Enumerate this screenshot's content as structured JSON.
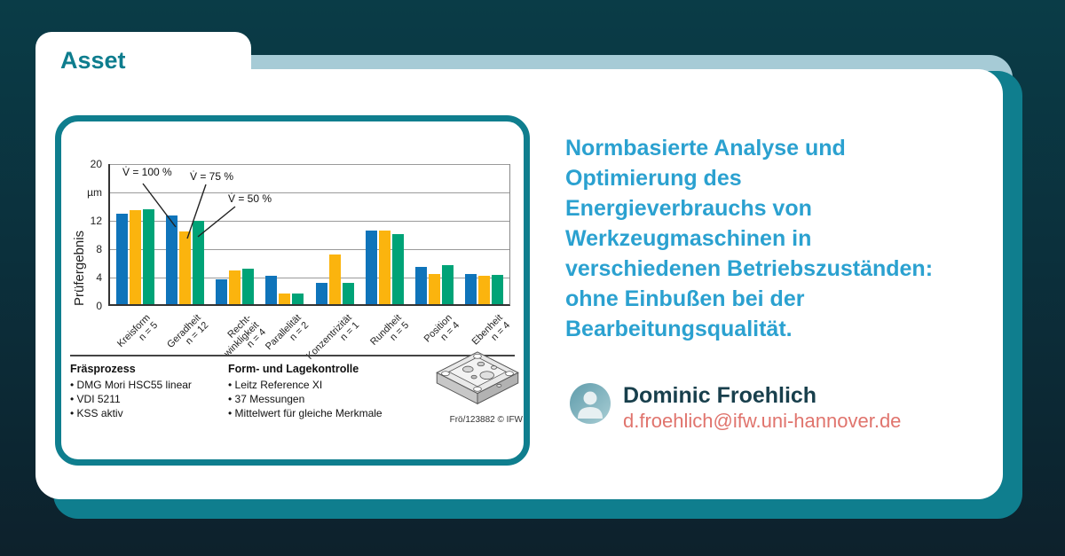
{
  "page": {
    "tab_label": "Asset",
    "colors": {
      "background_top": "#0a3c47",
      "background_bottom": "#0d212c",
      "accent_teal": "#0f7e8e",
      "band_blue": "#a6cbd6",
      "title_blue": "#2ba1d0",
      "name_dark": "#183f4c",
      "email_coral": "#e0746d"
    }
  },
  "asset": {
    "title_lines": [
      "Normbasierte Analyse und",
      "Optimierung des",
      "Energieverbrauchs von",
      "Werkzeugmaschinen in",
      "verschiedenen Betriebszuständen:",
      "ohne Einbußen bei der",
      "Bearbeitungsqualität."
    ],
    "title": "Normbasierte Analyse und Optimierung des Energieverbrauchs von Werkzeugmaschinen in verschiedenen Betriebszuständen: ohne Einbußen bei der Bearbeitungsqualität.",
    "author": {
      "name": "Dominic Froehlich",
      "email": "d.froehlich@ifw.uni-hannover.de"
    }
  },
  "chart_data": {
    "type": "bar",
    "ylabel": "Prüfergebnis",
    "y_unit": "µm",
    "ylim": [
      0,
      20
    ],
    "grid": true,
    "legend_position": "callout-arrows-top-left",
    "yticks": [
      {
        "value": 20,
        "label": "20"
      },
      {
        "value": 16,
        "label": "µm"
      },
      {
        "value": 12,
        "label": "12"
      },
      {
        "value": 8,
        "label": "8"
      },
      {
        "value": 4,
        "label": "4"
      },
      {
        "value": 0,
        "label": "0"
      }
    ],
    "categories": [
      {
        "lines": [
          "Kreisform"
        ],
        "n": "n = 5"
      },
      {
        "lines": [
          "Geradheit"
        ],
        "n": "n = 12"
      },
      {
        "lines": [
          "Recht-",
          "winkligkeit"
        ],
        "n": "n = 4"
      },
      {
        "lines": [
          "Parallelität"
        ],
        "n": "n = 2"
      },
      {
        "lines": [
          "Konzentrizität"
        ],
        "n": "n = 1"
      },
      {
        "lines": [
          "Rundheit"
        ],
        "n": "n = 5"
      },
      {
        "lines": [
          "Position"
        ],
        "n": "n = 4"
      },
      {
        "lines": [
          "Ebenheit"
        ],
        "n": "n = 4"
      }
    ],
    "series": [
      {
        "name": "V̇ = 100 %",
        "color": "#0f74ba",
        "values": [
          12.8,
          12.5,
          3.5,
          4.0,
          3.0,
          10.4,
          5.3,
          4.3
        ]
      },
      {
        "name": "V̇ = 75 %",
        "color": "#fbb40e",
        "values": [
          13.2,
          10.3,
          4.8,
          1.5,
          7.0,
          10.4,
          4.3,
          4.0
        ]
      },
      {
        "name": "V̇ = 50 %",
        "color": "#00a377",
        "values": [
          13.4,
          11.7,
          5.0,
          1.5,
          3.0,
          9.9,
          5.5,
          4.1
        ]
      }
    ],
    "footer_left": {
      "title": "Fräsprozess",
      "items": [
        "DMG Mori HSC55 linear",
        "VDI 5211",
        "KSS aktiv"
      ]
    },
    "footer_right": {
      "title": "Form- und Lagekontrolle",
      "items": [
        "Leitz Reference XI",
        "37 Messungen",
        "Mittelwert für gleiche Merkmale"
      ]
    },
    "credit": "Frö/123882 © IFW"
  }
}
